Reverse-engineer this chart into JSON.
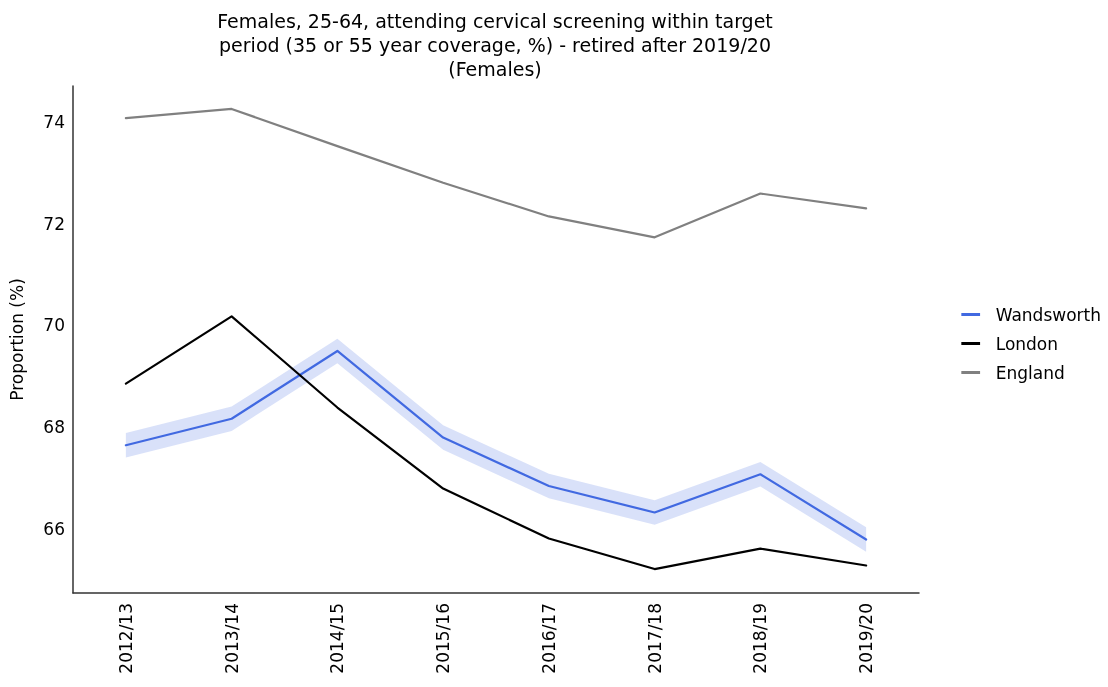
{
  "chart_data": {
    "type": "line",
    "title": "Females, 25-64, attending cervical screening within target\nperiod (35 or 55 year coverage, %) - retired after 2019/20\n(Females)",
    "ylabel": "Proportion (%)",
    "categories": [
      "2012/13",
      "2013/14",
      "2014/15",
      "2015/16",
      "2016/17",
      "2017/18",
      "2018/19",
      "2019/20"
    ],
    "series": [
      {
        "name": "Wandsworth",
        "color": "#4169e1",
        "values": [
          67.65,
          68.17,
          69.5,
          67.8,
          66.85,
          66.33,
          67.08,
          65.8
        ],
        "lower": [
          67.41,
          67.93,
          69.26,
          67.56,
          66.61,
          66.09,
          66.84,
          65.56
        ],
        "upper": [
          67.89,
          68.41,
          69.74,
          68.04,
          67.09,
          66.57,
          67.32,
          66.04
        ]
      },
      {
        "name": "London",
        "color": "#000000",
        "values": [
          68.86,
          70.18,
          68.39,
          66.8,
          65.82,
          65.22,
          65.62,
          65.29
        ]
      },
      {
        "name": "England",
        "color": "#808080",
        "values": [
          74.07,
          74.25,
          73.52,
          72.8,
          72.14,
          71.73,
          72.59,
          72.3
        ]
      }
    ],
    "ylim": [
      64.75,
      74.7
    ],
    "yticks": [
      66,
      68,
      70,
      72,
      74
    ],
    "legend": "right",
    "grid": false,
    "marker": "none",
    "line_style": "solid"
  }
}
